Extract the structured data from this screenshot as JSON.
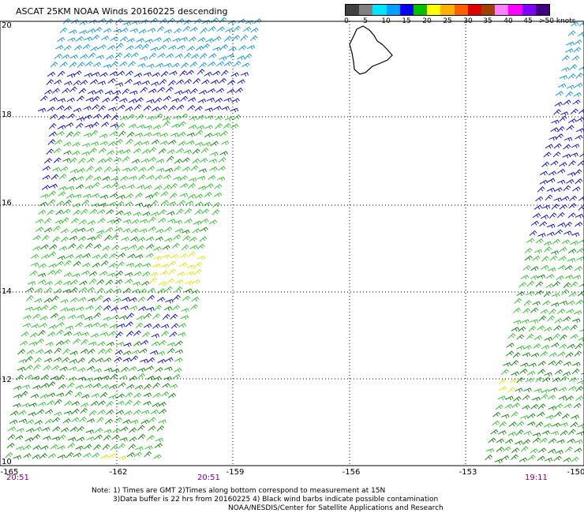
{
  "title": "ASCAT 25KM NOAA Winds 20160225 descending",
  "scale": {
    "labels": [
      "0",
      "5",
      "10",
      "15",
      "20",
      "25",
      "30",
      "35",
      "40",
      "45",
      ">50 knots"
    ],
    "colors": [
      "#404040",
      "#808080",
      "#00e5ff",
      "#00a0ff",
      "#0000ff",
      "#00c000",
      "#ffff00",
      "#ffb000",
      "#ff6000",
      "#e00000",
      "#a04000",
      "#ff80ff",
      "#ff00ff",
      "#8000ff",
      "#400080"
    ]
  },
  "lat_labels": [
    "20",
    "18",
    "16",
    "14",
    "12",
    "10"
  ],
  "lon_labels": [
    "-165",
    "-162",
    "-159",
    "-156",
    "-153",
    "-150"
  ],
  "times": [
    "20:51",
    "20:51",
    "19:11"
  ],
  "notes": [
    "Note: 1) Times are GMT 2)Times along bottom correspond to measurement at 15N",
    "3)Data buffer is 22 hrs from 20160225 4) Black wind barbs indicate possible contamination",
    "NOAA/NESDIS/Center for Satellite Applications and Research"
  ],
  "colors": {
    "grid": "#000000",
    "barb_blue": "#0000cc",
    "barb_light_blue": "#0090e0",
    "barb_green": "#20c020",
    "barb_dark_green": "#008000",
    "barb_yellow": "#e0e000",
    "time_label": "#800080"
  }
}
